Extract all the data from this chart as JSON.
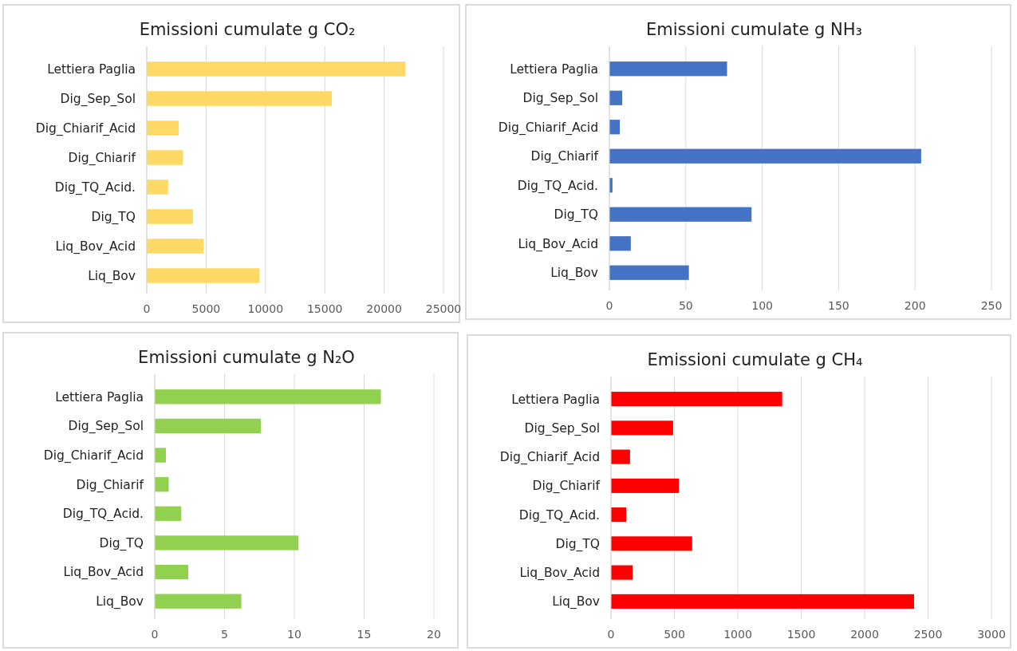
{
  "chart_data": [
    {
      "type": "bar",
      "orientation": "horizontal",
      "title": "Emissioni cumulate g CO₂",
      "categories": [
        "Lettiera Paglia",
        "Dig_Sep_Sol",
        "Dig_Chiarif_Acid",
        "Dig_Chiarif",
        "Dig_TQ_Acid.",
        "Dig_TQ",
        "Liq_Bov_Acid",
        "Liq_Bov"
      ],
      "values": [
        21800,
        15600,
        2700,
        3050,
        1800,
        3900,
        4800,
        9500
      ],
      "color": "#ffd966",
      "xlim": [
        0,
        25000
      ],
      "xticks": [
        0,
        5000,
        10000,
        15000,
        20000,
        25000
      ],
      "grid": "x"
    },
    {
      "type": "bar",
      "orientation": "horizontal",
      "title": "Emissioni cumulate g NH₃",
      "categories": [
        "Lettiera Paglia",
        "Dig_Sep_Sol",
        "Dig_Chiarif_Acid",
        "Dig_Chiarif",
        "Dig_TQ_Acid.",
        "Dig_TQ",
        "Liq_Bov_Acid",
        "Liq_Bov"
      ],
      "values": [
        77,
        8.4,
        6.8,
        204,
        2,
        93,
        14,
        52
      ],
      "color": "#4472c4",
      "xlim": [
        0,
        250
      ],
      "xticks": [
        0,
        50,
        100,
        150,
        200,
        250
      ],
      "grid": "x"
    },
    {
      "type": "bar",
      "orientation": "horizontal",
      "title": "Emissioni cumulate g N₂O",
      "categories": [
        "Lettiera Paglia",
        "Dig_Sep_Sol",
        "Dig_Chiarif_Acid",
        "Dig_Chiarif",
        "Dig_TQ_Acid.",
        "Dig_TQ",
        "Liq_Bov_Acid",
        "Liq_Bov"
      ],
      "values": [
        16.2,
        7.6,
        0.8,
        1.0,
        1.9,
        10.3,
        2.4,
        6.2
      ],
      "color": "#92d050",
      "xlim": [
        0,
        20
      ],
      "xticks": [
        0,
        5,
        10,
        15,
        20
      ],
      "grid": "x"
    },
    {
      "type": "bar",
      "orientation": "horizontal",
      "title": "Emissioni cumulate g CH₄",
      "categories": [
        "Lettiera Paglia",
        "Dig_Sep_Sol",
        "Dig_Chiarif_Acid",
        "Dig_Chiarif",
        "Dig_TQ_Acid.",
        "Dig_TQ",
        "Liq_Bov_Acid",
        "Liq_Bov"
      ],
      "values": [
        1350,
        490,
        150,
        535,
        120,
        640,
        170,
        2390
      ],
      "color": "#ff0000",
      "xlim": [
        0,
        3000
      ],
      "xticks": [
        0,
        500,
        1000,
        1500,
        2000,
        2500,
        3000
      ],
      "grid": "x"
    }
  ]
}
